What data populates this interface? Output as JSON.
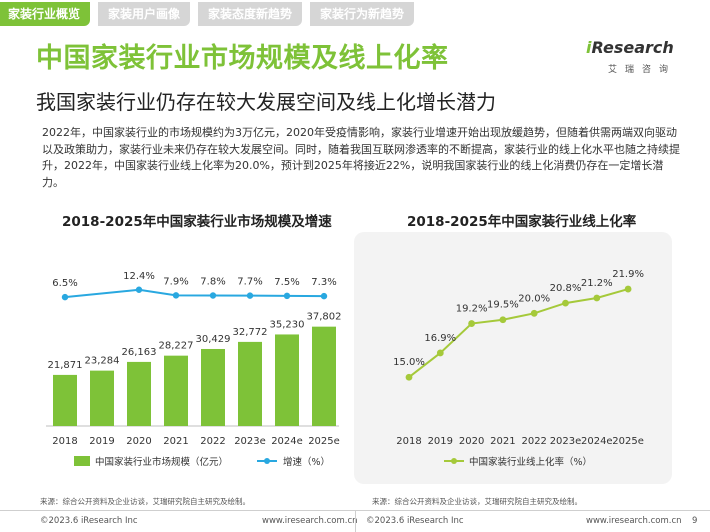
{
  "tabs": [
    {
      "label": "家装行业概览",
      "active": true
    },
    {
      "label": "家装用户画像",
      "active": false
    },
    {
      "label": "家装态度新趋势",
      "active": false
    },
    {
      "label": "家装行为新趋势",
      "active": false
    }
  ],
  "title": "中国家装行业市场规模及线上化率",
  "subtitle": "我国家装行业仍存在较大发展空间及线上化增长潜力",
  "paragraph": "2022年，中国家装行业的市场规模约为3万亿元，2020年受疫情影响，家装行业增速开始出现放缓趋势，但随着供需两端双向驱动以及政策助力，家装行业未来仍存在较大发展空间。同时，随着我国互联网渗透率的不断提高，家装行业的线上化水平也随之持续提升，2022年，中国家装行业线上化率为20.0%，预计到2025年将接近22%，说明我国家装行业的线上化消费仍存在一定增长潜力。",
  "logo": {
    "main_i": "i",
    "main_rest": "Research",
    "sub": "艾瑞咨询"
  },
  "colors": {
    "accent": "#7ec238",
    "growth": "#29a8e0",
    "tab_inactive": "#d6d6d6"
  },
  "chart_data": [
    {
      "type": "bar",
      "title": "2018-2025年中国家装行业市场规模及增速",
      "categories": [
        "2018",
        "2019",
        "2020",
        "2021",
        "2022",
        "2023e",
        "2024e",
        "2025e"
      ],
      "series": [
        {
          "name": "中国家装行业市场规模（亿元）",
          "type": "bar",
          "color": "#7ec238",
          "values": [
            21871,
            23284,
            26163,
            28227,
            30429,
            32772,
            35230,
            37802
          ],
          "labels": [
            "21,871",
            "23,284",
            "26,163",
            "28,227",
            "30,429",
            "32,772",
            "35,230",
            "37,802"
          ]
        },
        {
          "name": "增速（%）",
          "type": "line",
          "color": "#29a8e0",
          "values": [
            6.5,
            null,
            12.4,
            7.9,
            7.8,
            7.7,
            7.5,
            7.3
          ],
          "labels": [
            "6.5%",
            "",
            "12.4%",
            "7.9%",
            "7.8%",
            "7.7%",
            "7.5%",
            "7.3%"
          ]
        }
      ],
      "legend": "bottom"
    },
    {
      "type": "line",
      "title": "2018-2025年中国家装行业线上化率",
      "categories": [
        "2018",
        "2019",
        "2020",
        "2021",
        "2022",
        "2023e",
        "2024e",
        "2025e"
      ],
      "series": [
        {
          "name": "中国家装行业线上化率（%）",
          "color": "#a5c93a",
          "values": [
            15.0,
            16.9,
            19.2,
            19.5,
            20.0,
            20.8,
            21.2,
            21.9
          ],
          "labels": [
            "15.0%",
            "16.9%",
            "19.2%",
            "19.5%",
            "20.0%",
            "20.8%",
            "21.2%",
            "21.9%"
          ]
        }
      ],
      "legend": "bottom"
    }
  ],
  "source_left": "来源：综合公开资料及企业访谈，艾瑞研究院自主研究及绘制。",
  "source_right": "来源：综合公开资料及企业访谈，艾瑞研究院自主研究及绘制。",
  "footer": {
    "copyright_left": "©2023.6 iResearch Inc",
    "url_left": "www.iresearch.com.cn",
    "copyright_right": "©2023.6 iResearch Inc",
    "url_right": "www.iresearch.com.cn",
    "page": "9"
  }
}
